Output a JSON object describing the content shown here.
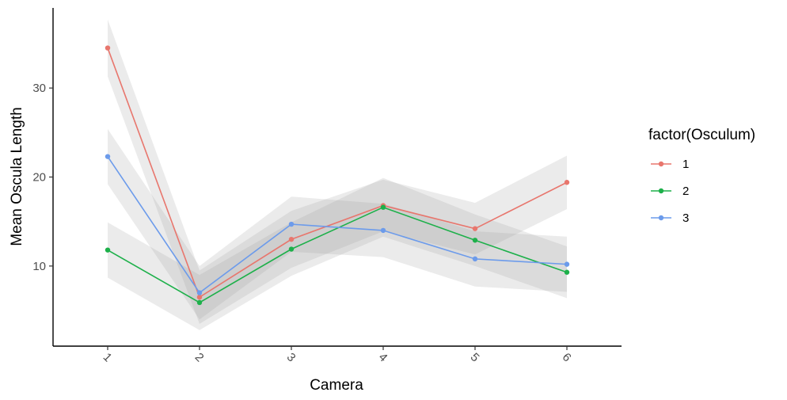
{
  "chart_data": {
    "type": "line",
    "title": "",
    "xlabel": "Camera",
    "ylabel": "Mean Oscula Length",
    "categories": [
      "1",
      "2",
      "3",
      "4",
      "5",
      "6"
    ],
    "yticks": [
      "10",
      "20",
      "30"
    ],
    "ylim": [
      1,
      39
    ],
    "legend": {
      "title": "factor(Osculum)",
      "position": "right"
    },
    "grid": false,
    "series": [
      {
        "name": "1",
        "color": "#E8766D",
        "values": [
          34.5,
          6.5,
          13.0,
          16.8,
          14.2,
          19.4
        ],
        "ci_lower": [
          31.3,
          3.5,
          9.8,
          13.9,
          11.3,
          16.4
        ],
        "ci_upper": [
          37.7,
          9.5,
          16.2,
          19.7,
          17.1,
          22.4
        ]
      },
      {
        "name": "2",
        "color": "#1DB04A",
        "values": [
          11.8,
          5.9,
          11.9,
          16.6,
          12.9,
          9.3
        ],
        "ci_lower": [
          8.7,
          2.8,
          8.9,
          13.3,
          10.0,
          6.4
        ],
        "ci_upper": [
          14.9,
          9.0,
          14.9,
          19.9,
          15.8,
          12.2
        ]
      },
      {
        "name": "3",
        "color": "#6C9BEB",
        "values": [
          22.3,
          7.0,
          14.7,
          14.0,
          10.8,
          10.2
        ],
        "ci_lower": [
          19.2,
          4.0,
          11.6,
          11.0,
          7.7,
          7.1
        ],
        "ci_upper": [
          25.4,
          10.0,
          17.8,
          17.0,
          13.9,
          13.3
        ]
      }
    ]
  }
}
